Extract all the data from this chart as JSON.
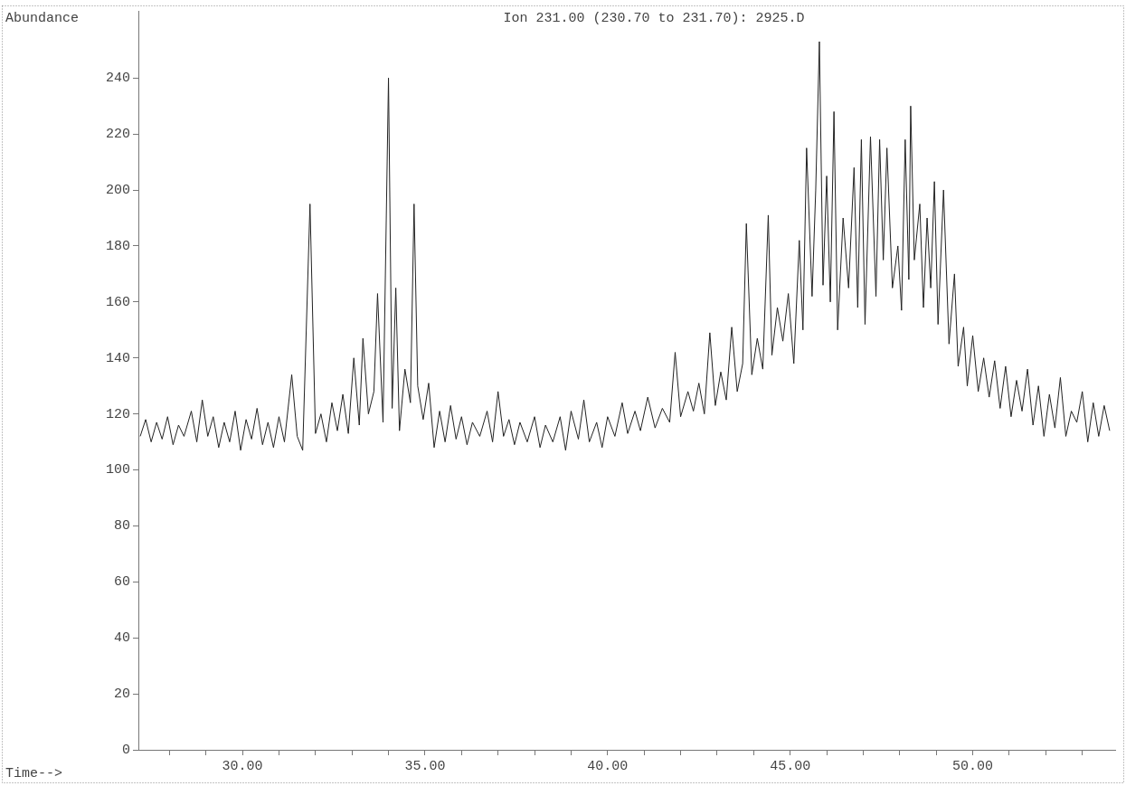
{
  "chart_data": {
    "type": "line",
    "title": "Ion 231.00 (230.70 to 231.70): 2925.D",
    "xlabel": "Time-->",
    "ylabel": "Abundance",
    "x": [
      27.2,
      27.35,
      27.5,
      27.65,
      27.8,
      27.95,
      28.1,
      28.25,
      28.4,
      28.6,
      28.75,
      28.9,
      29.05,
      29.2,
      29.35,
      29.5,
      29.65,
      29.8,
      29.95,
      30.1,
      30.25,
      30.4,
      30.55,
      30.7,
      30.85,
      31.0,
      31.15,
      31.35,
      31.5,
      31.65,
      31.85,
      32.0,
      32.15,
      32.3,
      32.45,
      32.6,
      32.75,
      32.9,
      33.05,
      33.2,
      33.3,
      33.45,
      33.6,
      33.7,
      33.85,
      34.0,
      34.1,
      34.2,
      34.3,
      34.45,
      34.6,
      34.7,
      34.8,
      34.95,
      35.1,
      35.25,
      35.4,
      35.55,
      35.7,
      35.85,
      36.0,
      36.15,
      36.3,
      36.5,
      36.7,
      36.85,
      37.0,
      37.15,
      37.3,
      37.45,
      37.6,
      37.8,
      38.0,
      38.15,
      38.3,
      38.5,
      38.7,
      38.85,
      39.0,
      39.2,
      39.35,
      39.5,
      39.7,
      39.85,
      40.0,
      40.2,
      40.4,
      40.55,
      40.75,
      40.9,
      41.1,
      41.3,
      41.5,
      41.7,
      41.85,
      42.0,
      42.2,
      42.35,
      42.5,
      42.65,
      42.8,
      42.95,
      43.1,
      43.25,
      43.4,
      43.55,
      43.7,
      43.8,
      43.95,
      44.1,
      44.25,
      44.4,
      44.5,
      44.65,
      44.8,
      44.95,
      45.1,
      45.25,
      45.35,
      45.45,
      45.6,
      45.7,
      45.8,
      45.9,
      46.0,
      46.1,
      46.2,
      46.3,
      46.45,
      46.6,
      46.75,
      46.85,
      46.95,
      47.05,
      47.2,
      47.35,
      47.45,
      47.55,
      47.65,
      47.8,
      47.95,
      48.05,
      48.15,
      48.25,
      48.3,
      48.4,
      48.55,
      48.65,
      48.75,
      48.85,
      48.95,
      49.05,
      49.2,
      49.35,
      49.5,
      49.6,
      49.75,
      49.85,
      50.0,
      50.15,
      50.3,
      50.45,
      50.6,
      50.75,
      50.9,
      51.05,
      51.2,
      51.35,
      51.5,
      51.65,
      51.8,
      51.95,
      52.1,
      52.25,
      52.4,
      52.55,
      52.7,
      52.85,
      53.0,
      53.15,
      53.3,
      53.45,
      53.6,
      53.75
    ],
    "series": [
      {
        "color": "#222222",
        "values": [
          112,
          118,
          110,
          117,
          111,
          119,
          109,
          116,
          112,
          121,
          110,
          125,
          112,
          119,
          108,
          117,
          110,
          121,
          107,
          118,
          111,
          122,
          109,
          117,
          108,
          119,
          110,
          134,
          112,
          107,
          195,
          113,
          120,
          110,
          124,
          114,
          127,
          113,
          140,
          116,
          147,
          120,
          128,
          163,
          117,
          240,
          122,
          165,
          114,
          136,
          124,
          195,
          130,
          118,
          131,
          108,
          121,
          110,
          123,
          111,
          119,
          109,
          117,
          112,
          121,
          110,
          128,
          112,
          118,
          109,
          117,
          110,
          119,
          108,
          116,
          110,
          119,
          107,
          121,
          111,
          125,
          110,
          117,
          108,
          119,
          112,
          124,
          113,
          121,
          114,
          126,
          115,
          122,
          117,
          142,
          119,
          128,
          121,
          131,
          120,
          149,
          123,
          135,
          125,
          151,
          128,
          138,
          188,
          134,
          147,
          136,
          191,
          141,
          158,
          146,
          163,
          138,
          182,
          150,
          215,
          162,
          200,
          253,
          166,
          205,
          160,
          228,
          150,
          190,
          165,
          208,
          158,
          218,
          152,
          219,
          162,
          218,
          175,
          215,
          165,
          180,
          157,
          218,
          168,
          230,
          175,
          195,
          158,
          190,
          165,
          203,
          152,
          200,
          145,
          170,
          137,
          151,
          130,
          148,
          128,
          140,
          126,
          139,
          122,
          137,
          119,
          132,
          121,
          136,
          116,
          130,
          112,
          127,
          115,
          133,
          112,
          121,
          117,
          128,
          110,
          124,
          112,
          123,
          114
        ]
      }
    ],
    "xlim": [
      27.15,
      53.9
    ],
    "ylim": [
      0,
      264
    ],
    "xticks": [
      {
        "value": 28,
        "label": null
      },
      {
        "value": 29,
        "label": null
      },
      {
        "value": 30,
        "label": "30.00"
      },
      {
        "value": 31,
        "label": null
      },
      {
        "value": 32,
        "label": null
      },
      {
        "value": 33,
        "label": null
      },
      {
        "value": 34,
        "label": null
      },
      {
        "value": 35,
        "label": "35.00"
      },
      {
        "value": 36,
        "label": null
      },
      {
        "value": 37,
        "label": null
      },
      {
        "value": 38,
        "label": null
      },
      {
        "value": 39,
        "label": null
      },
      {
        "value": 40,
        "label": "40.00"
      },
      {
        "value": 41,
        "label": null
      },
      {
        "value": 42,
        "label": null
      },
      {
        "value": 43,
        "label": null
      },
      {
        "value": 44,
        "label": null
      },
      {
        "value": 45,
        "label": "45.00"
      },
      {
        "value": 46,
        "label": null
      },
      {
        "value": 47,
        "label": null
      },
      {
        "value": 48,
        "label": null
      },
      {
        "value": 49,
        "label": null
      },
      {
        "value": 50,
        "label": "50.00"
      },
      {
        "value": 51,
        "label": null
      },
      {
        "value": 52,
        "label": null
      },
      {
        "value": 53,
        "label": null
      }
    ],
    "yticks": [
      0,
      20,
      40,
      60,
      80,
      100,
      120,
      140,
      160,
      180,
      200,
      220,
      240
    ],
    "grid": false,
    "legend": false,
    "marker": "none",
    "line_style": "solid"
  }
}
